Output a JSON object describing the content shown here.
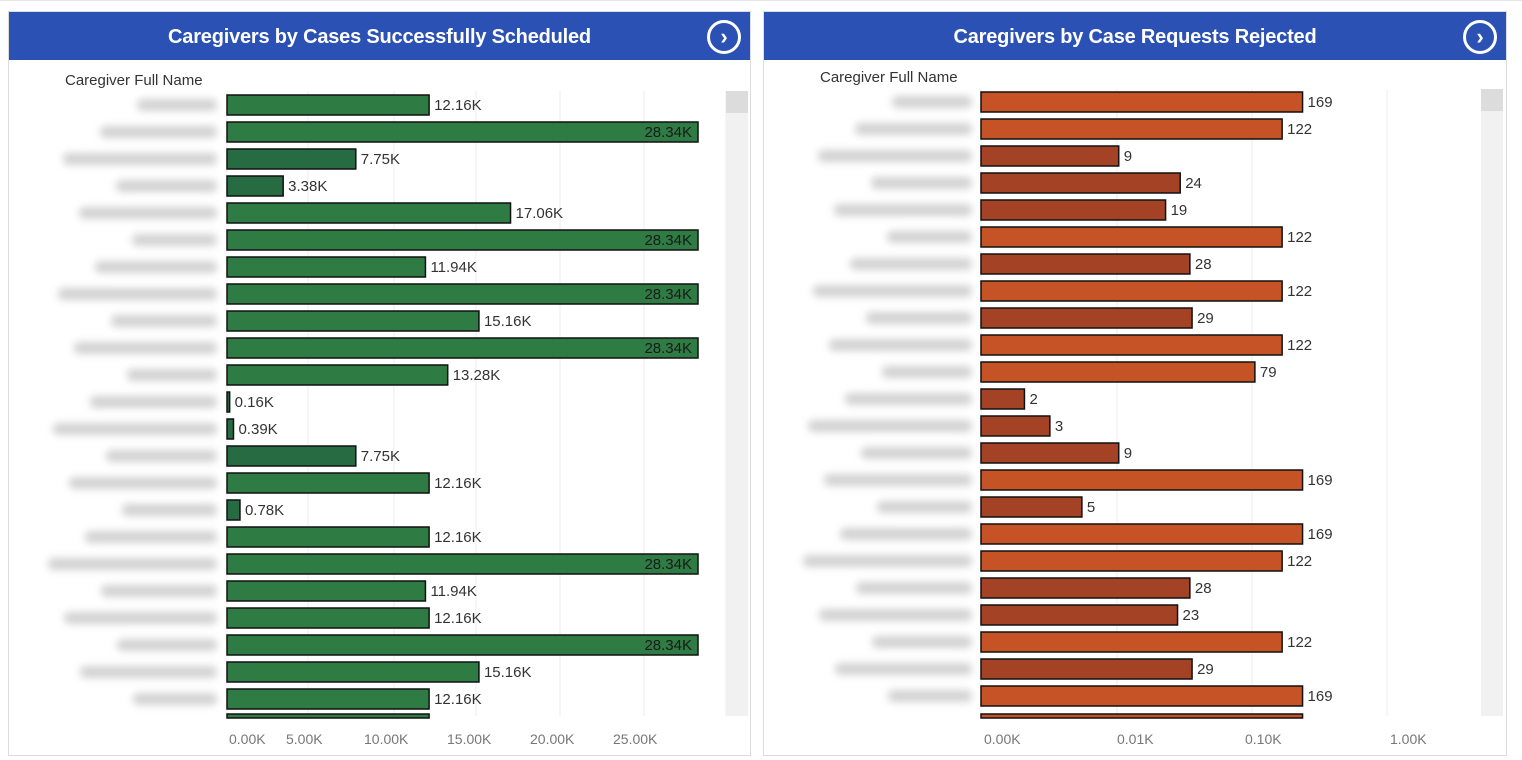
{
  "chart_data": [
    {
      "type": "bar",
      "orientation": "horizontal",
      "title": "Caregivers by Cases Successfully Scheduled",
      "ylabel": "Caregiver Full Name",
      "xlabel": "",
      "x_scale": "linear",
      "xlim": [
        0,
        28340
      ],
      "x_ticks": [
        "0.00K",
        "5.00K",
        "10.00K",
        "15.00K",
        "20.00K",
        "25.00K"
      ],
      "categories_note": "caregiver names blurred / not legible",
      "values": [
        12160,
        28340,
        7750,
        3380,
        17060,
        28340,
        11940,
        28340,
        15160,
        28340,
        13280,
        160,
        390,
        7750,
        12160,
        780,
        12160,
        28340,
        11940,
        12160,
        28340,
        15160,
        12160
      ],
      "labels": [
        "12.16K",
        "28.34K",
        "7.75K",
        "3.38K",
        "17.06K",
        "28.34K",
        "11.94K",
        "28.34K",
        "15.16K",
        "28.34K",
        "13.28K",
        "0.16K",
        "0.39K",
        "7.75K",
        "12.16K",
        "0.78K",
        "12.16K",
        "28.34K",
        "11.94K",
        "12.16K",
        "28.34K",
        "15.16K",
        "12.16K"
      ],
      "colors": {
        "high": "#2e7b43",
        "low": "#276b42"
      },
      "grid": true,
      "scroll_position": 0
    },
    {
      "type": "bar",
      "orientation": "horizontal",
      "title": "Caregivers by Case Requests Rejected",
      "ylabel": "Caregiver Full Name",
      "xlabel": "",
      "x_scale": "log",
      "xlim": [
        1,
        1000
      ],
      "x_ticks": [
        "0.00K",
        "0.01K",
        "0.10K",
        "1.00K"
      ],
      "categories_note": "caregiver names blurred / not legible",
      "values": [
        169,
        122,
        9,
        24,
        19,
        122,
        28,
        122,
        29,
        122,
        79,
        2,
        3,
        9,
        169,
        5,
        169,
        122,
        28,
        23,
        122,
        29,
        169
      ],
      "labels": [
        "169",
        "122",
        "9",
        "24",
        "19",
        "122",
        "28",
        "122",
        "29",
        "122",
        "79",
        "2",
        "3",
        "9",
        "169",
        "5",
        "169",
        "122",
        "28",
        "23",
        "122",
        "29",
        "169"
      ],
      "colors": {
        "high": "#c55325",
        "low": "#a44226"
      },
      "grid": true,
      "scroll_position": 0
    }
  ],
  "panels": [
    {
      "title": "Caregivers by Cases Successfully Scheduled",
      "field_label": "Caregiver Full Name",
      "nav_icon": "chevron-right-circle-icon"
    },
    {
      "title": "Caregivers by Case Requests Rejected",
      "field_label": "Caregiver Full Name",
      "nav_icon": "chevron-right-circle-icon"
    }
  ],
  "nav_glyph": "›"
}
